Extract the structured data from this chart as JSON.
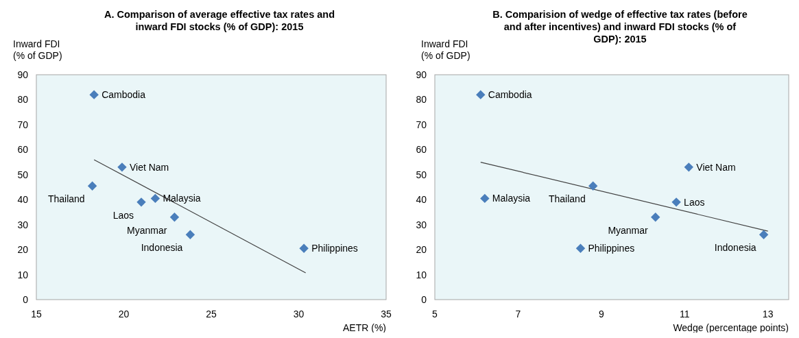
{
  "chart_data": [
    {
      "type": "scatter",
      "title": "A. Comparison of average effective tax rates and inward FDI stocks (% of GDP): 2015",
      "xlabel": "AETR (%)",
      "ylabel": "Inward FDI\n(% of GDP)",
      "xlim": [
        15,
        35
      ],
      "xticks": [
        15,
        20,
        25,
        30,
        35
      ],
      "ylim": [
        0,
        90
      ],
      "yticks": [
        0,
        10,
        20,
        30,
        40,
        50,
        60,
        70,
        80,
        90
      ],
      "grid": false,
      "series": [
        {
          "name": "Cambodia",
          "color": "#4a7ebb",
          "x": [
            18.3
          ],
          "values": [
            82
          ]
        },
        {
          "name": "Viet Nam",
          "color": "#4a7ebb",
          "x": [
            19.9
          ],
          "values": [
            53
          ]
        },
        {
          "name": "Thailand",
          "color": "#4a7ebb",
          "x": [
            18.2
          ],
          "values": [
            45.5
          ]
        },
        {
          "name": "Laos",
          "color": "#4a7ebb",
          "x": [
            21
          ],
          "values": [
            39
          ]
        },
        {
          "name": "Malaysia",
          "color": "#4a7ebb",
          "x": [
            21.8
          ],
          "values": [
            40.5
          ]
        },
        {
          "name": "Myanmar",
          "color": "#4a7ebb",
          "x": [
            22.9
          ],
          "values": [
            33
          ]
        },
        {
          "name": "Indonesia",
          "color": "#4a7ebb",
          "x": [
            23.8
          ],
          "values": [
            26
          ]
        },
        {
          "name": "Philippines",
          "color": "#4a7ebb",
          "x": [
            30.3
          ],
          "values": [
            20.5
          ]
        },
        {
          "type": "line",
          "color": "#404040",
          "x": [
            18.3,
            30.4
          ],
          "values": [
            56,
            10.7
          ]
        }
      ]
    },
    {
      "type": "scatter",
      "title": "B. Comparision of wedge of effective tax rates (before and after incentives) and inward FDI stocks (% of GDP): 2015",
      "xlabel": "Wedge (percentage points)",
      "ylabel": "Inward FDI\n(% of GDP)",
      "xlim": [
        5,
        13.5
      ],
      "xticks": [
        5,
        7,
        9,
        11,
        13
      ],
      "ylim": [
        0,
        90
      ],
      "yticks": [
        0,
        10,
        20,
        30,
        40,
        50,
        60,
        70,
        80,
        90
      ],
      "grid": false,
      "series": [
        {
          "name": "Cambodia",
          "color": "#4a7ebb",
          "x": [
            6.1
          ],
          "values": [
            82
          ]
        },
        {
          "name": "Malaysia",
          "color": "#4a7ebb",
          "x": [
            6.2
          ],
          "values": [
            40.5
          ]
        },
        {
          "name": "Thailand",
          "color": "#4a7ebb",
          "x": [
            8.8
          ],
          "values": [
            45.5
          ]
        },
        {
          "name": "Philippines",
          "color": "#4a7ebb",
          "x": [
            8.5
          ],
          "values": [
            20.5
          ]
        },
        {
          "name": "Myanmar",
          "color": "#4a7ebb",
          "x": [
            10.3
          ],
          "values": [
            33
          ]
        },
        {
          "name": "Laos",
          "color": "#4a7ebb",
          "x": [
            10.8
          ],
          "values": [
            39
          ]
        },
        {
          "name": "Viet Nam",
          "color": "#4a7ebb",
          "x": [
            11.1
          ],
          "values": [
            53
          ]
        },
        {
          "name": "Indonesia",
          "color": "#4a7ebb",
          "x": [
            12.9
          ],
          "values": [
            26
          ]
        },
        {
          "type": "line",
          "color": "#404040",
          "x": [
            6.1,
            13
          ],
          "values": [
            55,
            27.4
          ]
        }
      ]
    }
  ]
}
